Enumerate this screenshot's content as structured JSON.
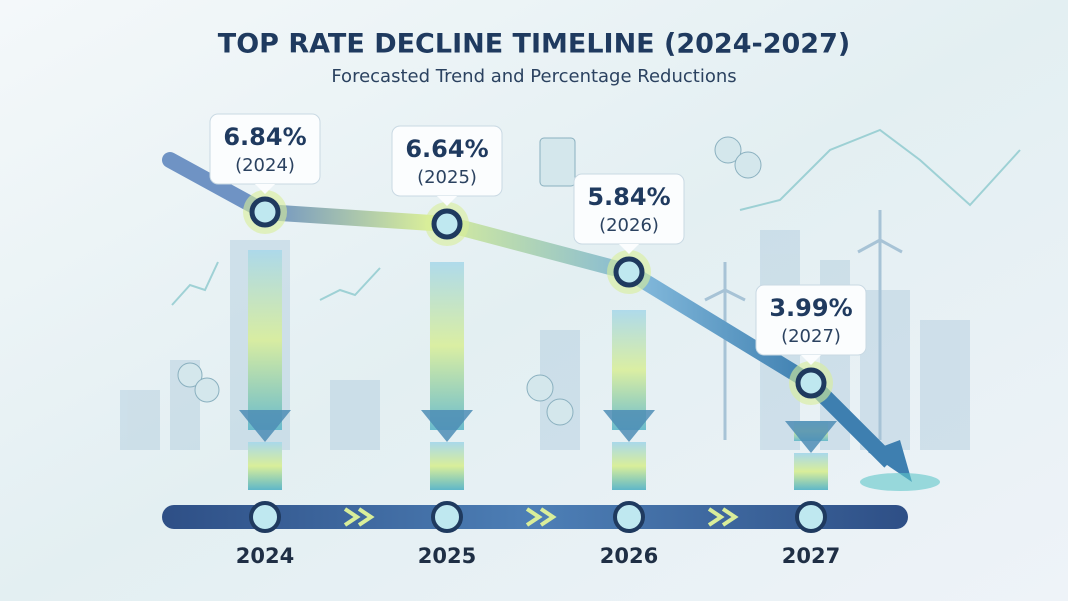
{
  "chart_data": {
    "type": "line",
    "title": "TOP RATE DECLINE TIMELINE (2024-2027)",
    "subtitle": "Forecasted Trend and Percentage Reductions",
    "categories": [
      "2024",
      "2025",
      "2026",
      "2027"
    ],
    "values": [
      6.84,
      6.64,
      5.84,
      3.99
    ],
    "value_labels": [
      "6.84%",
      "6.64%",
      "5.84%",
      "3.99%"
    ],
    "point_labels": [
      "(2024)",
      "(2025)",
      "(2026)",
      "(2027)"
    ],
    "color": "#3f6fa8"
  }
}
